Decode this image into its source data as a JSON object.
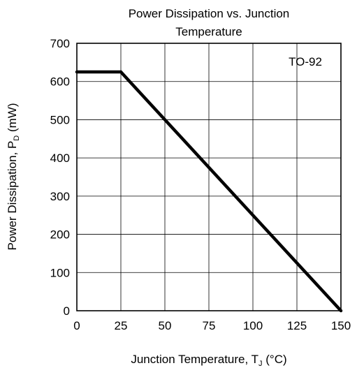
{
  "chart_data": {
    "type": "line",
    "title_lines": [
      "Power Dissipation vs. Junction",
      "Temperature"
    ],
    "xlabel": {
      "main": "Junction Temperature, T",
      "sub": "J",
      "suffix": " (°C)"
    },
    "ylabel": {
      "main": "Power Dissipation, P",
      "sub": "D",
      "suffix": " (mW)"
    },
    "xlim": [
      0,
      150
    ],
    "ylim": [
      0,
      700
    ],
    "x_ticks": [
      0,
      25,
      50,
      75,
      100,
      125,
      150
    ],
    "y_ticks": [
      0,
      100,
      200,
      300,
      400,
      500,
      600,
      700
    ],
    "grid": true,
    "annotation": "TO-92",
    "series": [
      {
        "x": [
          0,
          25,
          150
        ],
        "y": [
          625,
          625,
          0
        ]
      }
    ]
  }
}
